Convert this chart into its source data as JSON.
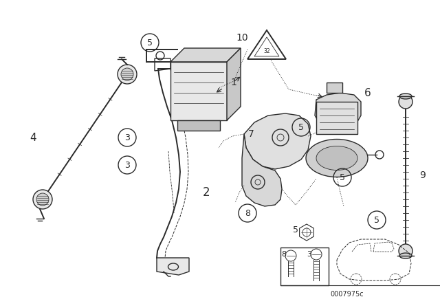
{
  "bg_color": "#ffffff",
  "line_color": "#2a2a2a",
  "figsize": [
    6.4,
    4.48
  ],
  "dpi": 100,
  "footnote": "0007975c",
  "label_fontsize": 10,
  "circle_fontsize": 9
}
